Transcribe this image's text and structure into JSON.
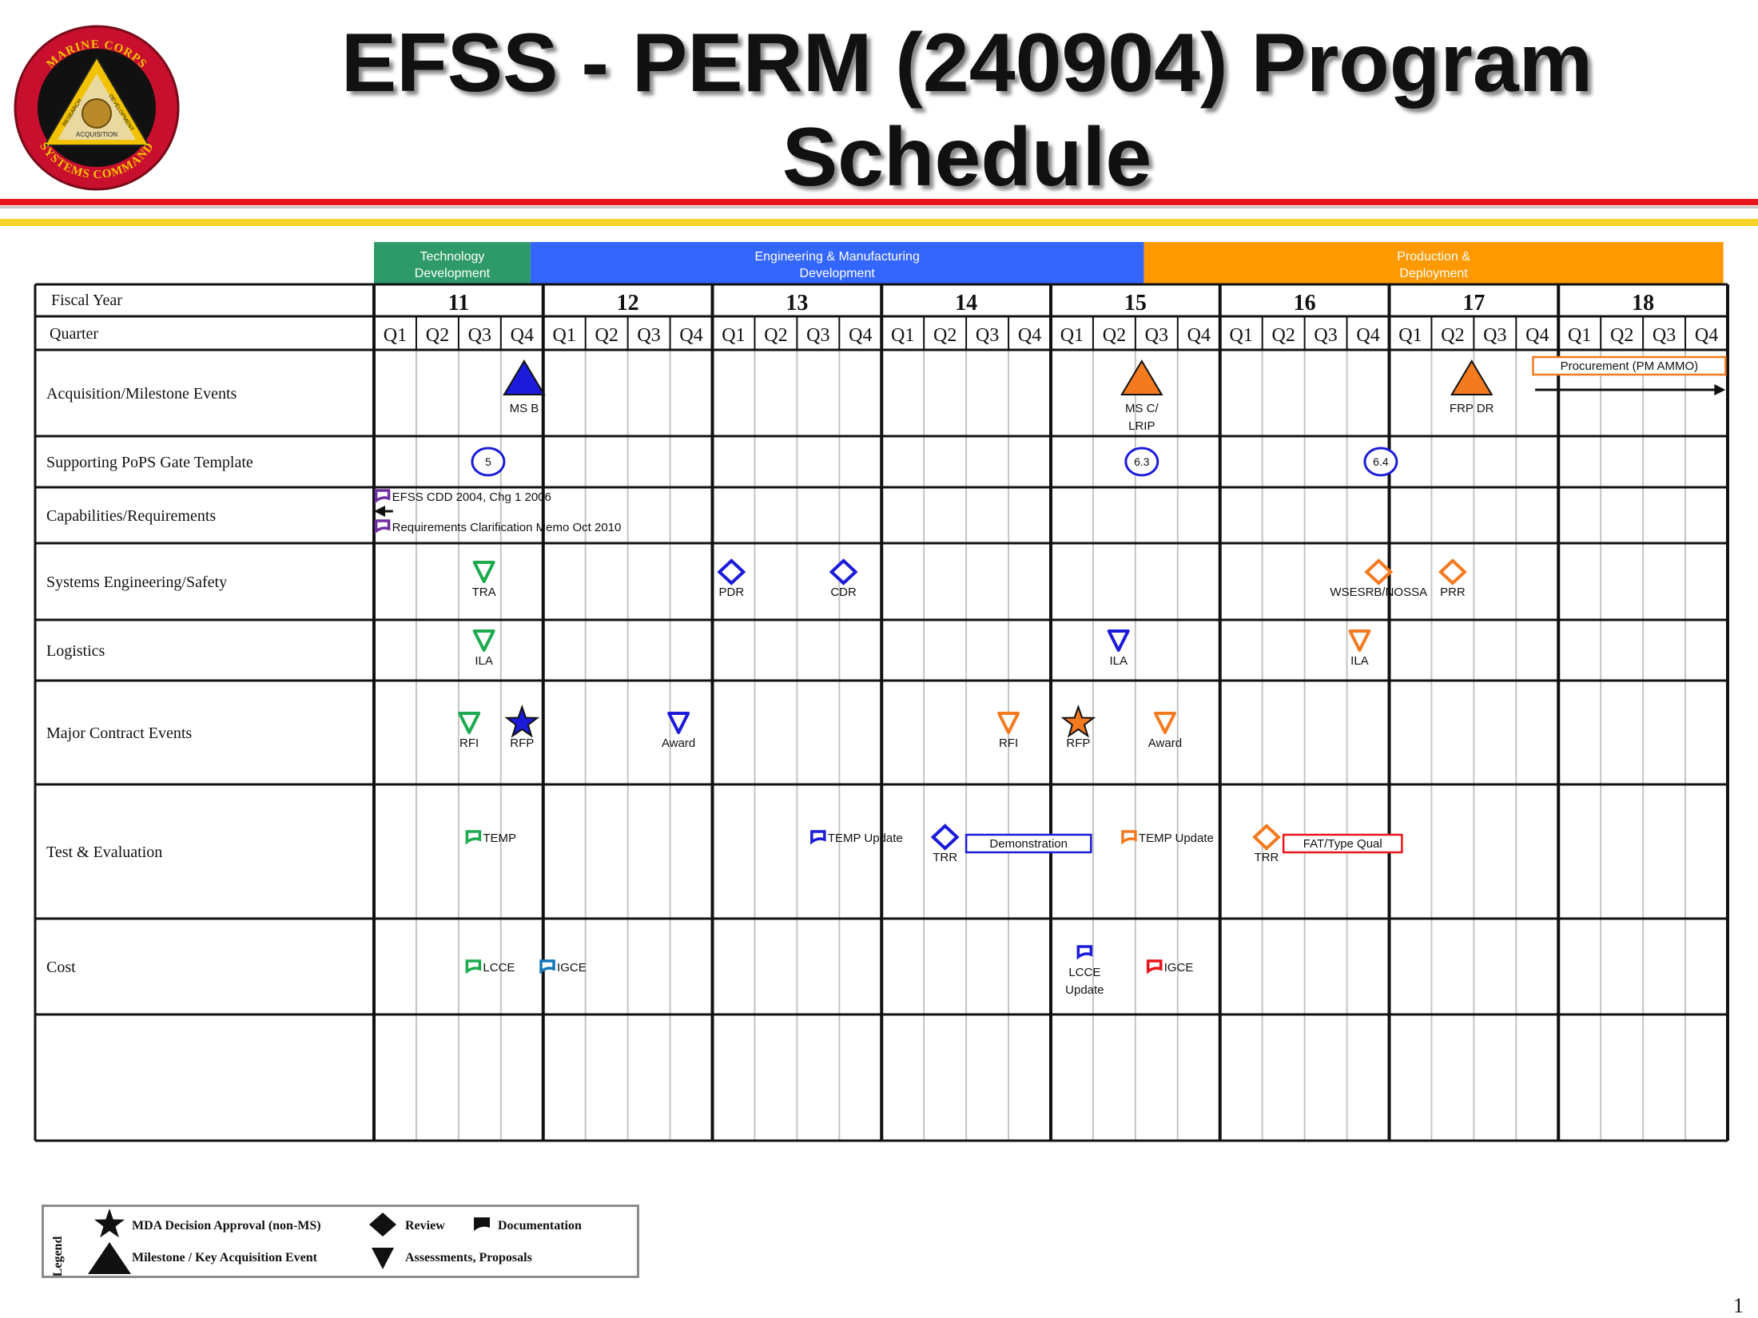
{
  "title": {
    "line1": "EFSS - PERM (240904) Program",
    "line2": "Schedule"
  },
  "logo": {
    "top": "MARINE CORPS",
    "bottom": "SYSTEMS COMMAND",
    "words": [
      "RESEARCH",
      "DEVELOPMENT",
      "ACQUISITION"
    ]
  },
  "colors": {
    "red": "#e8151b",
    "yellow": "#f5d327",
    "green": "#1daa4f",
    "blue": "#1b1bd9",
    "orange": "#f47a20",
    "purple": "#7030a0",
    "teal": "#1477b8"
  },
  "phases": [
    {
      "line1": "Technology",
      "line2": "Development",
      "start_quarter": 0,
      "end_quarter": 3.7,
      "color": "#2e9a6a"
    },
    {
      "line1": "Engineering & Manufacturing",
      "line2": "Development",
      "start_quarter": 3.7,
      "end_quarter": 18.2,
      "color": "#3366ff"
    },
    {
      "line1": "Production &",
      "line2": "Deployment",
      "start_quarter": 18.2,
      "end_quarter": 31.9,
      "color": "#ff9900"
    }
  ],
  "labels": {
    "fiscal_year": "Fiscal Year",
    "quarter": "Quarter"
  },
  "years": [
    "11",
    "12",
    "13",
    "14",
    "15",
    "16",
    "17",
    "18"
  ],
  "quarters": [
    "Q1",
    "Q2",
    "Q3",
    "Q4"
  ],
  "rows": [
    "Acquisition/Milestone Events",
    "Supporting PoPS Gate Template",
    "Capabilities/Requirements",
    "Systems Engineering/Safety",
    "Logistics",
    "Major Contract Events",
    "Test & Evaluation",
    "Cost",
    ""
  ],
  "events": [
    {
      "row": 0,
      "q": 3.55,
      "shape": "triangle",
      "color": "#1b1bd9",
      "label": [
        "MS B"
      ]
    },
    {
      "row": 0,
      "q": 18.15,
      "shape": "triangle",
      "color": "#f47a20",
      "label": [
        "MS C/",
        "LRIP"
      ]
    },
    {
      "row": 0,
      "q": 25.95,
      "shape": "triangle",
      "color": "#f47a20",
      "label": [
        "FRP DR"
      ]
    },
    {
      "row": 1,
      "q": 2.7,
      "shape": "circle",
      "color": "#1b1bd9",
      "text": "5"
    },
    {
      "row": 1,
      "q": 18.15,
      "shape": "circle",
      "color": "#1b1bd9",
      "text": "6.3"
    },
    {
      "row": 1,
      "q": 23.8,
      "shape": "circle",
      "color": "#1b1bd9",
      "text": "6.4"
    },
    {
      "row": 2,
      "q": 0.2,
      "shape": "doc",
      "color": "#7030a0",
      "text": "EFSS CDD 2004, Chg 1 2006",
      "dy": -24
    },
    {
      "row": 2,
      "q": 0.2,
      "shape": "doc",
      "color": "#7030a0",
      "text": "Requirements Clarification Memo Oct 2010",
      "dy": 14
    },
    {
      "row": 3,
      "q": 2.6,
      "shape": "downtri",
      "color": "#1daa4f",
      "label": [
        "TRA"
      ]
    },
    {
      "row": 3,
      "q": 8.45,
      "shape": "diamond",
      "color": "#1b1bd9",
      "label": [
        "PDR"
      ]
    },
    {
      "row": 3,
      "q": 11.1,
      "shape": "diamond",
      "color": "#1b1bd9",
      "label": [
        "CDR"
      ]
    },
    {
      "row": 3,
      "q": 23.75,
      "shape": "diamond",
      "color": "#f47a20",
      "label": [
        "WSESRB/NOSSA"
      ]
    },
    {
      "row": 3,
      "q": 25.5,
      "shape": "diamond",
      "color": "#f47a20",
      "label": [
        "PRR"
      ]
    },
    {
      "row": 4,
      "q": 2.6,
      "shape": "downtri",
      "color": "#1daa4f",
      "label": [
        "ILA"
      ]
    },
    {
      "row": 4,
      "q": 17.6,
      "shape": "downtri",
      "color": "#1b1bd9",
      "label": [
        "ILA"
      ]
    },
    {
      "row": 4,
      "q": 23.3,
      "shape": "downtri",
      "color": "#f47a20",
      "label": [
        "ILA"
      ]
    },
    {
      "row": 5,
      "q": 2.25,
      "shape": "downtri",
      "color": "#1daa4f",
      "label": [
        "RFI"
      ]
    },
    {
      "row": 5,
      "q": 3.5,
      "shape": "star",
      "color": "#1b1bd9",
      "label": [
        "RFP"
      ]
    },
    {
      "row": 5,
      "q": 7.2,
      "shape": "downtri",
      "color": "#1b1bd9",
      "label": [
        "Award"
      ]
    },
    {
      "row": 5,
      "q": 15.0,
      "shape": "downtri",
      "color": "#f47a20",
      "label": [
        "RFI"
      ]
    },
    {
      "row": 5,
      "q": 16.65,
      "shape": "star",
      "color": "#f47a20",
      "label": [
        "RFP"
      ]
    },
    {
      "row": 5,
      "q": 18.7,
      "shape": "downtri",
      "color": "#f47a20",
      "label": [
        "Award"
      ]
    },
    {
      "row": 6,
      "q": 2.35,
      "shape": "doc",
      "color": "#1daa4f",
      "text": "TEMP"
    },
    {
      "row": 6,
      "q": 10.5,
      "shape": "doc",
      "color": "#1b1bd9",
      "text": "TEMP Update"
    },
    {
      "row": 6,
      "q": 13.5,
      "shape": "diamond",
      "color": "#1b1bd9",
      "label": [
        "TRR"
      ]
    },
    {
      "row": 6,
      "q": 17.85,
      "shape": "doc",
      "color": "#f47a20",
      "text": "TEMP Update"
    },
    {
      "row": 6,
      "q": 21.1,
      "shape": "diamond",
      "color": "#f47a20",
      "label": [
        "TRR"
      ]
    },
    {
      "row": 7,
      "q": 2.35,
      "shape": "doc",
      "color": "#1daa4f",
      "text": "LCCE"
    },
    {
      "row": 7,
      "q": 4.1,
      "shape": "doc",
      "color": "#1477b8",
      "text": "IGCE"
    },
    {
      "row": 7,
      "q": 16.8,
      "shape": "doc",
      "color": "#1b1bd9",
      "label": [
        "LCCE",
        "Update"
      ]
    },
    {
      "row": 7,
      "q": 18.45,
      "shape": "doc",
      "color": "#e8151b",
      "text": "IGCE"
    }
  ],
  "boxes": [
    {
      "row": 0,
      "q1": 27.4,
      "q2": 31.95,
      "dy": -34,
      "color": "#f47a20",
      "text": "Procurement (PM AMMO)"
    },
    {
      "row": 6,
      "q1": 14.0,
      "q2": 16.95,
      "dy": -10,
      "color": "#1b1bd9",
      "text": "Demonstration"
    },
    {
      "row": 6,
      "q1": 21.5,
      "q2": 24.3,
      "dy": -10,
      "color": "#e8151b",
      "text": "FAT/Type Qual"
    }
  ],
  "legend": {
    "title": "Legend",
    "items": [
      {
        "shape": "star",
        "label": "MDA Decision Approval (non-MS)"
      },
      {
        "shape": "diamond",
        "label": "Review"
      },
      {
        "shape": "doc",
        "label": "Documentation"
      },
      {
        "shape": "triangle",
        "label": "Milestone / Key Acquisition Event"
      },
      {
        "shape": "downtri",
        "label": "Assessments, Proposals"
      }
    ]
  },
  "page_number": "1"
}
